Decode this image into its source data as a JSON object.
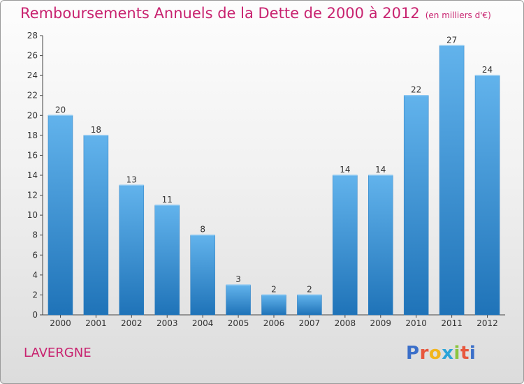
{
  "title": "Remboursements Annuels de la Dette de 2000 à 2012",
  "subtitle": "(en milliers d'€)",
  "commune": "LAVERGNE",
  "logo": {
    "letters": [
      "P",
      "r",
      "o",
      "x",
      "i",
      "t",
      "i"
    ],
    "colors": [
      "#3b6fc9",
      "#e8573d",
      "#f2b51c",
      "#2aa4d8",
      "#8bc53f",
      "#e8573d",
      "#3b6fc9"
    ]
  },
  "colors": {
    "title": "#c8226f",
    "bar_top": "#62b3ec",
    "bar_bottom": "#1f73b8",
    "axis": "#444444",
    "gridline": "#cccccc"
  },
  "chart_data": {
    "type": "bar",
    "title": "Remboursements Annuels de la Dette de 2000 à 2012",
    "subtitle": "(en milliers d'€)",
    "categories": [
      "2000",
      "2001",
      "2002",
      "2003",
      "2004",
      "2005",
      "2006",
      "2007",
      "2008",
      "2009",
      "2010",
      "2011",
      "2012"
    ],
    "values": [
      20,
      18,
      13,
      11,
      8,
      3,
      2,
      2,
      14,
      14,
      22,
      27,
      24
    ],
    "data_labels": [
      "20",
      "18",
      "13",
      "11",
      "8",
      "3",
      "2",
      "2",
      "14",
      "14",
      "22",
      "27",
      "24"
    ],
    "ylim": [
      0,
      28
    ],
    "yticks": [
      0,
      2,
      4,
      6,
      8,
      10,
      12,
      14,
      16,
      18,
      20,
      22,
      24,
      26,
      28
    ],
    "xlabel": "",
    "ylabel": "",
    "grid": false
  }
}
